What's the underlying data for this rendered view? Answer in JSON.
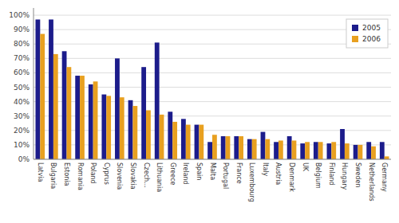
{
  "chart_data": {
    "type": "bar",
    "categories": [
      "Latvia",
      "Bulgaria",
      "Estonia",
      "Romania",
      "Poland",
      "Cyprus",
      "Slovenia",
      "Slovakia",
      "Czech...",
      "Lithuania",
      "Greece",
      "Ireland",
      "Spain",
      "Malta",
      "Portugal",
      "France",
      "Luxembourg",
      "Italy",
      "Austria",
      "Denmark",
      "UK",
      "Belgium",
      "Finland",
      "Hungary",
      "Sweden",
      "Netherlands",
      "Germany"
    ],
    "series": [
      {
        "name": "2005",
        "color": "#1C1C8B",
        "values": [
          0.97,
          0.97,
          0.75,
          0.58,
          0.52,
          0.45,
          0.7,
          0.41,
          0.64,
          0.81,
          0.33,
          0.28,
          0.24,
          0.12,
          0.16,
          0.16,
          0.14,
          0.19,
          0.12,
          0.16,
          0.11,
          0.12,
          0.11,
          0.21,
          0.1,
          0.12,
          0.12
        ]
      },
      {
        "name": "2006",
        "color": "#E8A020",
        "values": [
          0.87,
          0.73,
          0.64,
          0.58,
          0.54,
          0.44,
          0.43,
          0.37,
          0.34,
          0.31,
          0.26,
          0.24,
          0.24,
          0.17,
          0.16,
          0.16,
          0.14,
          0.14,
          0.13,
          0.13,
          0.12,
          0.12,
          0.12,
          0.11,
          0.1,
          0.09,
          0.02
        ]
      }
    ],
    "ylim": [
      0,
      1.05
    ],
    "yticks": [
      {
        "value": 0,
        "label": "0%"
      },
      {
        "value": 0.1,
        "label": "10%"
      },
      {
        "value": 0.2,
        "label": "20%"
      },
      {
        "value": 0.3,
        "label": "30%"
      },
      {
        "value": 0.4,
        "label": "40%"
      },
      {
        "value": 0.5,
        "label": "50%"
      },
      {
        "value": 0.6,
        "label": "60%"
      },
      {
        "value": 0.7,
        "label": "70%"
      },
      {
        "value": 0.8,
        "label": "80%"
      },
      {
        "value": 0.9,
        "label": "90%"
      },
      {
        "value": 1.0,
        "label": "100%"
      }
    ],
    "grid": true,
    "legend": "upper right"
  }
}
